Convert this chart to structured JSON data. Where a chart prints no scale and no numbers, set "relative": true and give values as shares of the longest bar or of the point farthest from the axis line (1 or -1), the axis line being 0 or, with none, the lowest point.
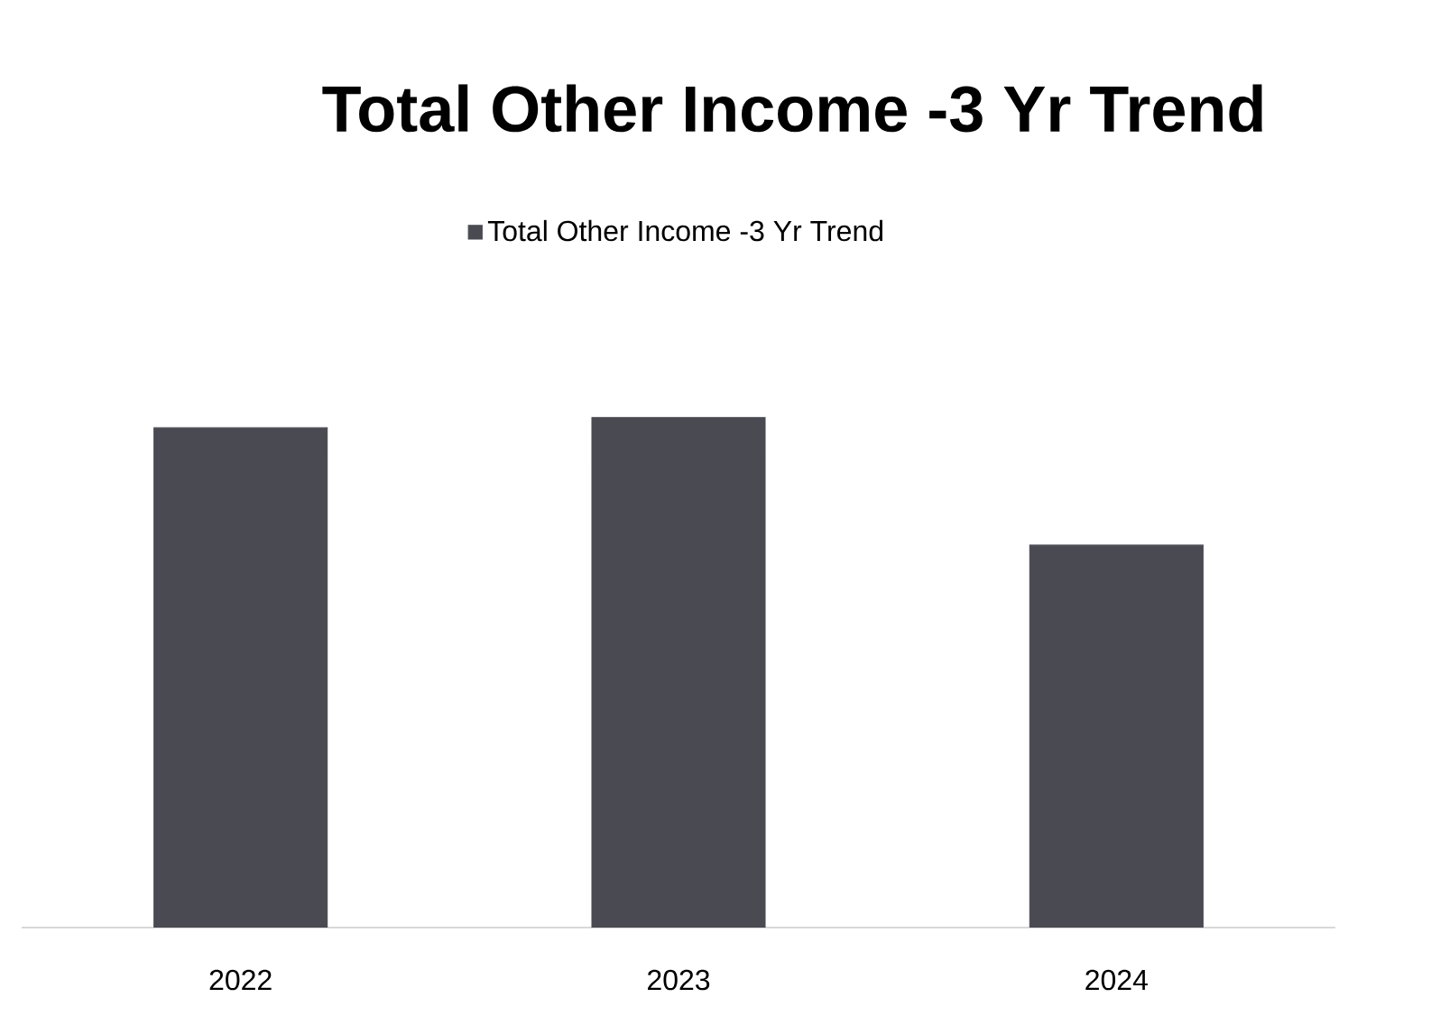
{
  "chart_data": {
    "type": "bar",
    "title": "Total Other Income -3 Yr Trend",
    "relative": true,
    "legend": "top",
    "categories": [
      "2022",
      "2023",
      "2024"
    ],
    "series": [
      {
        "name": "Total Other Income -3 Yr Trend",
        "color": "#4a4a52",
        "values": [
          0.98,
          1,
          0.75
        ]
      }
    ]
  }
}
